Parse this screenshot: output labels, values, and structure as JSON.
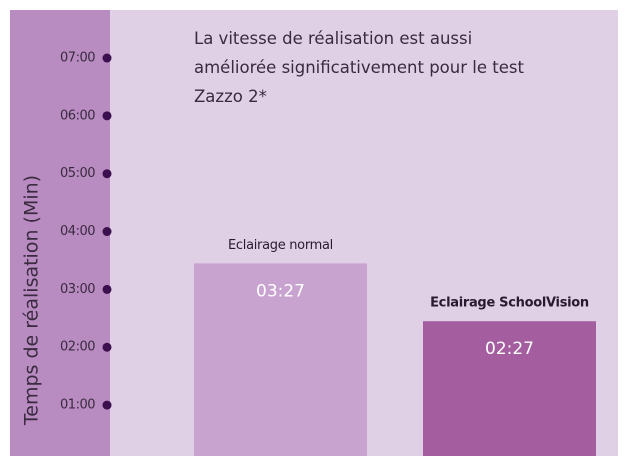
{
  "chart_data": {
    "type": "bar",
    "title": "La vitesse de réalisation est aussi améliorée significativement pour le test Zazzo 2*",
    "y_label": "Temps de réalisation (Min)",
    "categories": [
      "Eclairage normal",
      "Eclairage SchoolVision"
    ],
    "values": [
      3.45,
      2.45
    ],
    "value_labels": [
      "03:27",
      "02:27"
    ],
    "colors": [
      "#c9a3cf",
      "#a45ea0"
    ],
    "ylim": [
      0.12,
      7.83
    ],
    "yticks": [
      {
        "value": 1,
        "label": "01:00"
      },
      {
        "value": 2,
        "label": "02:00"
      },
      {
        "value": 3,
        "label": "03:00"
      },
      {
        "value": 4,
        "label": "04:00"
      },
      {
        "value": 5,
        "label": "05:00"
      },
      {
        "value": 6,
        "label": "06:00"
      },
      {
        "value": 7,
        "label": "07:00"
      }
    ]
  }
}
